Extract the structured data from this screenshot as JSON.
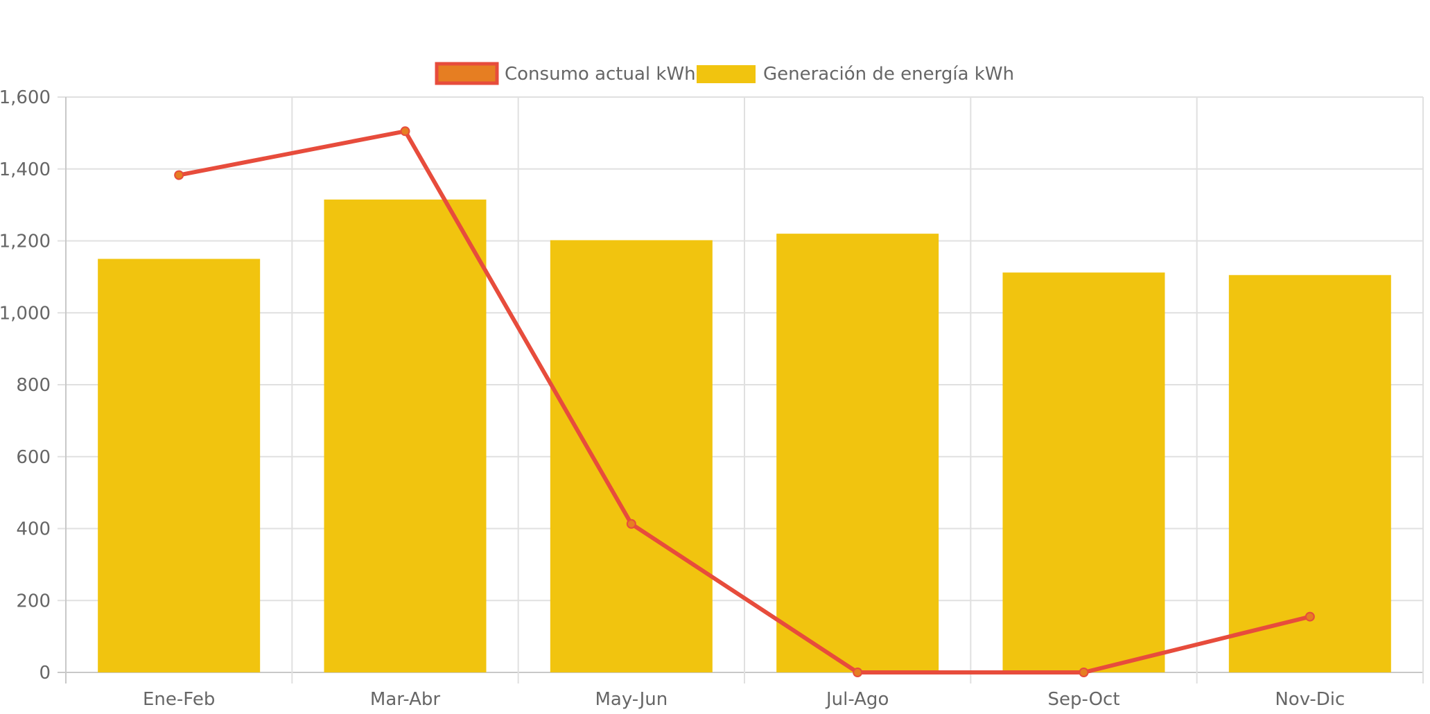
{
  "chart_data": {
    "type": "bar",
    "categories": [
      "Ene-Feb",
      "Mar-Abr",
      "May-Jun",
      "Jul-Ago",
      "Sep-Oct",
      "Nov-Dic"
    ],
    "series": [
      {
        "name": "Consumo actual kWh",
        "type": "line",
        "values": [
          1383,
          1505,
          413,
          0,
          0,
          155
        ],
        "color": "#e74c3c",
        "point_color": "#e67e22"
      },
      {
        "name": "Generación de energía kWh",
        "type": "bar",
        "values": [
          1150,
          1315,
          1202,
          1220,
          1112,
          1105
        ],
        "color": "#f1c40f"
      }
    ],
    "y_ticks": [
      "0",
      "200",
      "400",
      "600",
      "800",
      "1,000",
      "1,200",
      "1,400",
      "1,600"
    ],
    "ylim": [
      0,
      1600
    ],
    "grid": true,
    "legend_position": "top-center",
    "title": "",
    "xlabel": "",
    "ylabel": ""
  }
}
